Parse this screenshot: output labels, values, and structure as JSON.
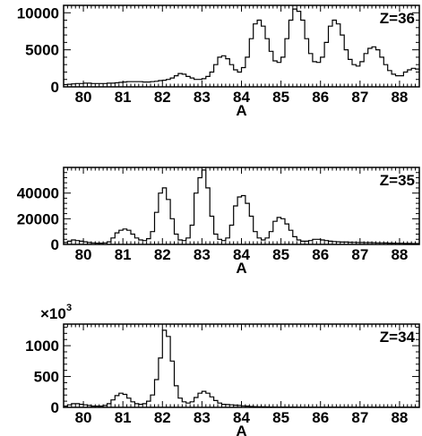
{
  "chart_data": [
    {
      "type": "histogram",
      "panel_label": "Z=36",
      "xlabel": "A",
      "ylabel": "",
      "multiplier": "",
      "xlim": [
        79.5,
        88.5
      ],
      "ylim": [
        0,
        11000
      ],
      "x_ticks": [
        "80",
        "81",
        "82",
        "83",
        "84",
        "85",
        "86",
        "87",
        "88"
      ],
      "y_ticks": [
        "0",
        "5000",
        "10000"
      ],
      "bin_width": 0.1,
      "x_start": 79.5,
      "values": [
        300,
        350,
        400,
        450,
        450,
        500,
        500,
        450,
        450,
        450,
        450,
        500,
        500,
        550,
        600,
        650,
        700,
        700,
        700,
        700,
        650,
        650,
        700,
        750,
        850,
        900,
        1000,
        1200,
        1500,
        1800,
        1700,
        1400,
        1200,
        1000,
        1000,
        1100,
        1400,
        2000,
        3000,
        4000,
        4200,
        3800,
        3000,
        2300,
        2000,
        2600,
        4000,
        6500,
        8500,
        9000,
        8200,
        6500,
        4800,
        3500,
        3300,
        4000,
        6500,
        9000,
        10500,
        10200,
        9000,
        6500,
        4500,
        3400,
        3300,
        4000,
        6000,
        8200,
        9000,
        8500,
        7000,
        5000,
        3700,
        3000,
        2800,
        3400,
        4500,
        5200,
        5400,
        5000,
        4000,
        3000,
        2200,
        1700,
        1500,
        1500,
        2000,
        2300,
        2500,
        2400,
        2200
      ]
    },
    {
      "type": "histogram",
      "panel_label": "Z=35",
      "xlabel": "A",
      "ylabel": "",
      "multiplier": "",
      "xlim": [
        79.5,
        88.5
      ],
      "ylim": [
        0,
        60000
      ],
      "x_ticks": [
        "80",
        "81",
        "82",
        "83",
        "84",
        "85",
        "86",
        "87",
        "88"
      ],
      "y_ticks": [
        "0",
        "20000",
        "40000"
      ],
      "bin_width": 0.1,
      "x_start": 79.5,
      "values": [
        1500,
        2500,
        3500,
        3000,
        2500,
        2000,
        1500,
        1200,
        1000,
        1000,
        1200,
        2000,
        5000,
        9000,
        11000,
        12000,
        11000,
        8000,
        5000,
        3500,
        3000,
        4500,
        10000,
        25000,
        40000,
        44000,
        35000,
        20000,
        8000,
        3500,
        3000,
        5000,
        15000,
        40000,
        52000,
        58000,
        44000,
        22000,
        8000,
        4000,
        3000,
        5000,
        15000,
        30000,
        37000,
        38000,
        32000,
        22000,
        10000,
        5000,
        3500,
        5000,
        10000,
        18000,
        21000,
        20000,
        16000,
        11000,
        6000,
        3500,
        2500,
        2500,
        3000,
        4000,
        4000,
        3500,
        3000,
        2500,
        2200,
        2000,
        1800,
        1800,
        1700,
        1600,
        1500,
        1500,
        1400,
        1400,
        1300,
        1200,
        1200,
        1100,
        1000,
        1000,
        900,
        900,
        800,
        800,
        700,
        700,
        600
      ]
    },
    {
      "type": "histogram",
      "panel_label": "Z=34",
      "xlabel": "A",
      "ylabel": "",
      "multiplier": "×10^3",
      "xlim": [
        79.5,
        88.5
      ],
      "ylim": [
        0,
        1350
      ],
      "x_ticks": [
        "80",
        "81",
        "82",
        "83",
        "84",
        "85",
        "86",
        "87",
        "88"
      ],
      "y_ticks": [
        "0",
        "500",
        "1000"
      ],
      "bin_width": 0.1,
      "x_start": 79.5,
      "values": [
        20,
        40,
        60,
        60,
        50,
        40,
        30,
        20,
        20,
        20,
        30,
        60,
        120,
        190,
        230,
        210,
        150,
        90,
        60,
        50,
        60,
        100,
        200,
        450,
        800,
        1250,
        1150,
        750,
        350,
        150,
        90,
        70,
        90,
        160,
        230,
        260,
        230,
        170,
        110,
        70,
        50,
        45,
        40,
        35,
        30,
        25,
        20,
        15,
        12,
        10,
        8,
        7,
        6,
        5,
        5,
        5,
        4,
        4,
        4,
        3,
        3,
        3,
        3,
        3,
        2,
        2,
        2,
        2,
        2,
        2,
        2,
        2,
        2,
        2,
        2,
        2,
        2,
        2,
        2,
        2,
        2,
        2,
        2,
        2,
        2,
        2,
        2,
        2,
        2,
        2,
        2
      ]
    }
  ]
}
